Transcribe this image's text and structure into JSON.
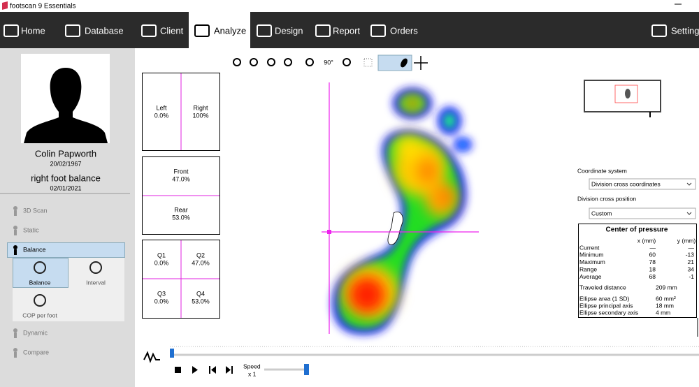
{
  "window": {
    "title": "footscan 9 Essentials"
  },
  "nav": {
    "tabs": [
      "Home",
      "Database",
      "Client",
      "Analyze",
      "Design",
      "Report",
      "Orders",
      "Settings"
    ],
    "active": 3
  },
  "patient": {
    "name": "Colin Papworth",
    "birth_date": "20/02/1967",
    "measurement": "right foot balance",
    "measurement_date": "02/01/2021"
  },
  "sidebar": {
    "items": [
      "3D Scan",
      "Static",
      "Balance",
      "Dynamic",
      "Compare"
    ],
    "active": 2,
    "sub_items": [
      "Balance",
      "Interval",
      "COP per foot"
    ],
    "sub_active": 0
  },
  "toolbar": {
    "rotate_label": "90°"
  },
  "balance": {
    "left_right": [
      {
        "label": "Left",
        "value": "0.0%"
      },
      {
        "label": "Right",
        "value": "100%"
      }
    ],
    "front_rear": [
      {
        "label": "Front",
        "value": "47.0%"
      },
      {
        "label": "Rear",
        "value": "53.0%"
      }
    ],
    "quadrants": [
      {
        "label": "Q1",
        "value": "0.0%"
      },
      {
        "label": "Q2",
        "value": "47.0%"
      },
      {
        "label": "Q3",
        "value": "0.0%"
      },
      {
        "label": "Q4",
        "value": "53.0%"
      }
    ]
  },
  "settings": {
    "coordinate_system_label": "Coordinate system",
    "coordinate_system": "Division cross coordinates",
    "division_cross_label": "Division cross position",
    "division_cross": "Custom"
  },
  "cop": {
    "title": "Center of pressure",
    "columns": [
      "x (mm)",
      "y (mm)"
    ],
    "rows": [
      [
        "Current",
        "—",
        "—"
      ],
      [
        "Minimum",
        "60",
        "-13"
      ],
      [
        "Maximum",
        "78",
        "21"
      ],
      [
        "Range",
        "18",
        "34"
      ],
      [
        "Average",
        "68",
        "-1"
      ]
    ],
    "extra": [
      [
        "Traveled distance",
        "209 mm"
      ],
      [
        "Ellipse area (1 SD)",
        "60 mm²"
      ],
      [
        "Ellipse principal axis",
        "18 mm"
      ],
      [
        "Ellipse secondary axis",
        "4 mm"
      ]
    ]
  },
  "playback": {
    "speed_label": "Speed",
    "speed": "x 1"
  }
}
